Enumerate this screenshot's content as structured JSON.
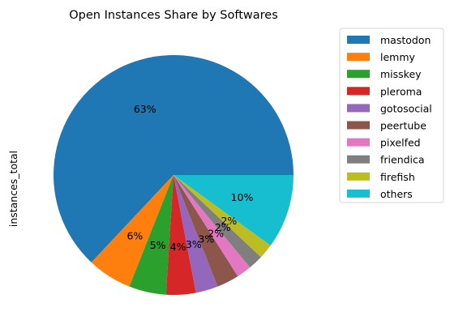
{
  "chart_data": {
    "type": "pie",
    "title": "Open Instances Share by Softwares",
    "ylabel": "instances_total",
    "labels": [
      "mastodon",
      "lemmy",
      "misskey",
      "pleroma",
      "gotosocial",
      "peertube",
      "pixelfed",
      "friendica",
      "firefish",
      "others"
    ],
    "values": [
      63,
      6,
      5,
      4,
      3,
      3,
      2,
      2,
      2,
      10
    ],
    "value_labels": [
      "63%",
      "6%",
      "5%",
      "4%",
      "3%",
      "3%",
      "2%",
      "2%",
      "2%",
      "10%"
    ],
    "colors": [
      "#1f77b4",
      "#ff7f0e",
      "#2ca02c",
      "#d62728",
      "#9467bd",
      "#8c564b",
      "#e377c2",
      "#7f7f7f",
      "#bcbd22",
      "#17becf"
    ],
    "legend_position": "upper-right-outside",
    "start_angle": "right",
    "direction": "counterclockwise"
  }
}
